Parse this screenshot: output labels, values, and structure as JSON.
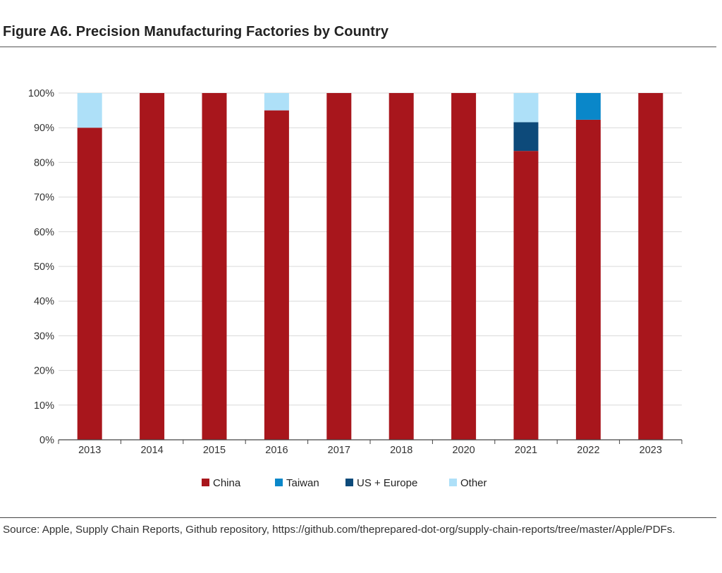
{
  "header": {
    "title": "Figure A6. Precision Manufacturing Factories by Country"
  },
  "footer": {
    "source": "Source: Apple, Supply Chain Reports, Github repository, https://github.com/theprepared-dot-org/supply-chain-reports/tree/master/Apple/PDFs."
  },
  "chart_data": {
    "type": "bar",
    "stacked": true,
    "title": "Figure A6. Precision Manufacturing Factories by Country",
    "xlabel": "",
    "ylabel": "",
    "categories": [
      "2013",
      "2014",
      "2015",
      "2016",
      "2017",
      "2018",
      "2020",
      "2021",
      "2022",
      "2023"
    ],
    "ylim": [
      0,
      100
    ],
    "yticks": [
      0,
      10,
      20,
      30,
      40,
      50,
      60,
      70,
      80,
      90,
      100
    ],
    "ytick_labels": [
      "0%",
      "10%",
      "20%",
      "30%",
      "40%",
      "50%",
      "60%",
      "70%",
      "80%",
      "90%",
      "100%"
    ],
    "grid": true,
    "legend_position": "bottom",
    "series": [
      {
        "name": "China",
        "color": "#a8161c",
        "values": [
          90,
          100,
          100,
          95,
          100,
          100,
          100,
          83.3,
          92.3,
          100
        ]
      },
      {
        "name": "Taiwan",
        "color": "#0a87c9",
        "values": [
          0,
          0,
          0,
          0,
          0,
          0,
          0,
          0,
          7.7,
          0
        ]
      },
      {
        "name": "US + Europe",
        "color": "#0d4a7a",
        "values": [
          0,
          0,
          0,
          0,
          0,
          0,
          0,
          8.3,
          0,
          0
        ]
      },
      {
        "name": "Other",
        "color": "#aee0f8",
        "values": [
          10,
          0,
          0,
          5,
          0,
          0,
          0,
          8.4,
          0,
          0
        ]
      }
    ]
  }
}
